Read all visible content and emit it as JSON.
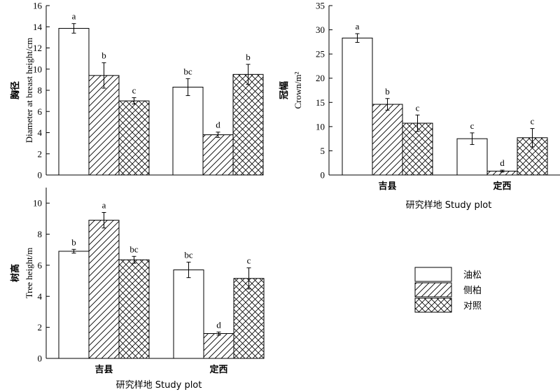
{
  "legend": [
    {
      "label": "油松",
      "pattern": "plain"
    },
    {
      "label": "侧柏",
      "pattern": "diag"
    },
    {
      "label": "对照",
      "pattern": "cross"
    }
  ],
  "chart_data": [
    {
      "id": "dbh",
      "type": "bar",
      "categories": [
        "吉县",
        "定西"
      ],
      "ylim": [
        0,
        16
      ],
      "yticks": [
        0,
        2,
        4,
        6,
        8,
        10,
        12,
        14,
        16
      ],
      "ylabel_cn": "胸径",
      "ylabel_en": "Diameter at breast height/cm",
      "xlabel": "",
      "show_category_labels": false,
      "series": [
        {
          "name": "油松",
          "values": [
            13.85,
            8.3
          ],
          "errors": [
            0.45,
            0.8
          ],
          "letters": [
            "a",
            "bc"
          ]
        },
        {
          "name": "侧柏",
          "values": [
            9.4,
            3.8
          ],
          "errors": [
            1.2,
            0.25
          ],
          "letters": [
            "b",
            "d"
          ]
        },
        {
          "name": "对照",
          "values": [
            7.0,
            9.5
          ],
          "errors": [
            0.3,
            0.95
          ],
          "letters": [
            "c",
            "b"
          ]
        }
      ]
    },
    {
      "id": "crown",
      "type": "bar",
      "categories": [
        "吉县",
        "定西"
      ],
      "ylim": [
        0,
        35
      ],
      "yticks": [
        0,
        5,
        10,
        15,
        20,
        25,
        30,
        35
      ],
      "ylabel_cn": "冠幅",
      "ylabel_en": "Crown/m²",
      "xlabel": "研究样地 Study plot",
      "show_category_labels": true,
      "series": [
        {
          "name": "油松",
          "values": [
            28.3,
            7.5
          ],
          "errors": [
            0.9,
            1.2
          ],
          "letters": [
            "a",
            "c"
          ]
        },
        {
          "name": "侧柏",
          "values": [
            14.6,
            0.8
          ],
          "errors": [
            1.2,
            0.2
          ],
          "letters": [
            "b",
            "d"
          ]
        },
        {
          "name": "对照",
          "values": [
            10.7,
            7.7
          ],
          "errors": [
            1.7,
            1.9
          ],
          "letters": [
            "c",
            "c"
          ]
        }
      ]
    },
    {
      "id": "height",
      "type": "bar",
      "categories": [
        "吉县",
        "定西"
      ],
      "ylim": [
        0,
        11
      ],
      "yticks": [
        0,
        2,
        4,
        6,
        8,
        10
      ],
      "ylabel_cn": "树高",
      "ylabel_en": "Tree height/m",
      "xlabel": "研究样地 Study plot",
      "show_category_labels": true,
      "series": [
        {
          "name": "油松",
          "values": [
            6.9,
            5.7
          ],
          "errors": [
            0.12,
            0.5
          ],
          "letters": [
            "b",
            "bc"
          ]
        },
        {
          "name": "侧柏",
          "values": [
            8.9,
            1.6
          ],
          "errors": [
            0.5,
            0.1
          ],
          "letters": [
            "a",
            "d"
          ]
        },
        {
          "name": "对照",
          "values": [
            6.35,
            5.15
          ],
          "errors": [
            0.22,
            0.68
          ],
          "letters": [
            "bc",
            "c"
          ]
        }
      ]
    }
  ]
}
